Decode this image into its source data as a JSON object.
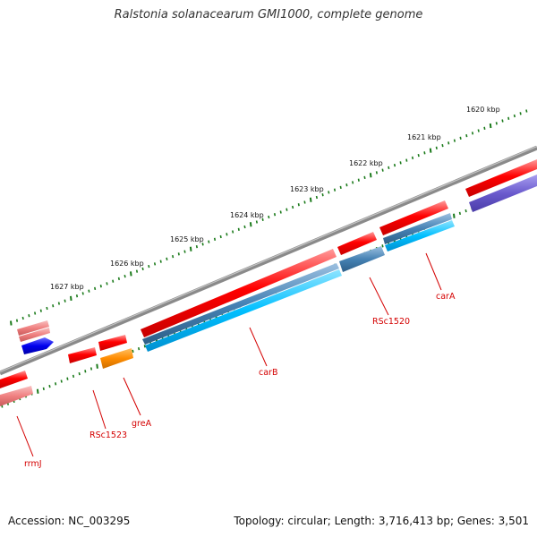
{
  "title": "Ralstonia solanacearum GMI1000, complete genome",
  "footer": {
    "accession": "Accession: NC_003295",
    "summary": "Topology: circular; Length: 3,716,413 bp; Genes: 3,501"
  },
  "scale_labels": [
    "1620 kbp",
    "1621 kbp",
    "1622 kbp",
    "1623 kbp",
    "1624 kbp",
    "1625 kbp",
    "1626 kbp",
    "1627 kbp"
  ],
  "gene_labels": [
    "carA",
    "RSc1520",
    "carB",
    "greA",
    "RSc1523",
    "rrmJ"
  ],
  "colors": {
    "backbone": "#8a8a8a",
    "forward_gene": "#ff0000",
    "pale_gene": "#f08080",
    "cds_blue": "#00bfff",
    "cds_steel": "#4682b4",
    "cds_orange": "#ff8c00",
    "cds_violet": "#6a5acd",
    "cds_dark_blue": "#0000ee",
    "tick": "#1a7a1a",
    "label": "#d40000"
  }
}
